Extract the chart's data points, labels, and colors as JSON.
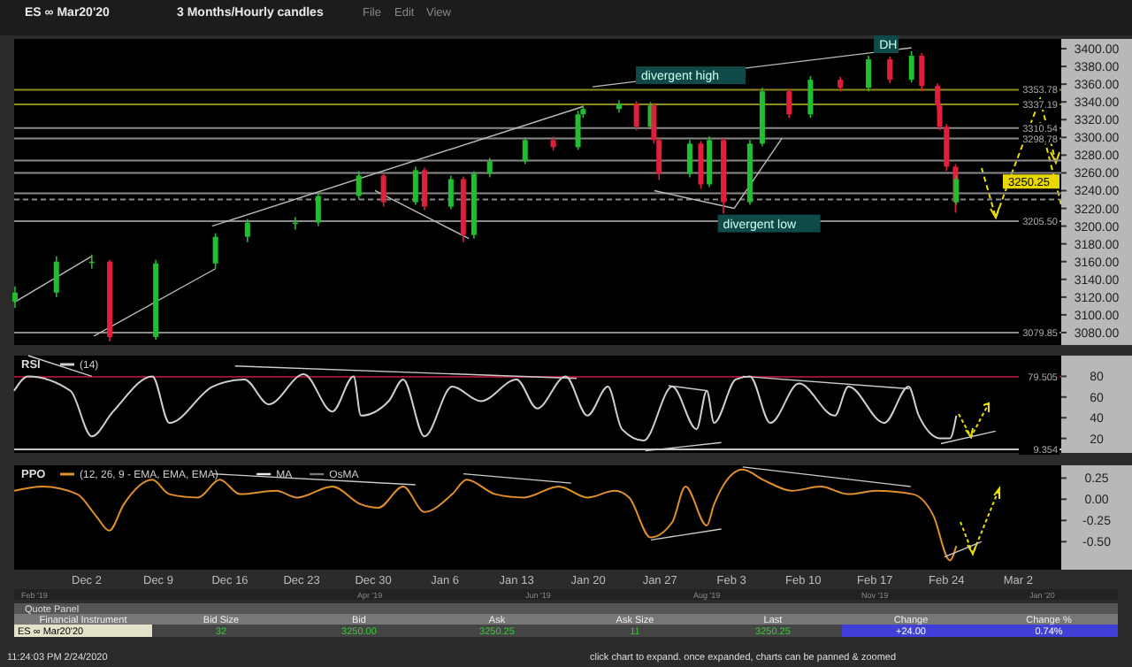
{
  "chart_data": [
    {
      "type": "candlestick",
      "title": "ES ∞ Mar20'20",
      "subtitle": "3 Months/Hourly candles",
      "tick_labels": "y",
      "grid": false,
      "legend": false,
      "series": [
        {
          "type": "line",
          "color": "#bbbbbb",
          "x": [
            "2019-12-02T17:00",
            "2019-12-14T14:00"
          ],
          "values": [
            3076,
            3152
          ]
        },
        {
          "type": "line",
          "color": "#bbbbbb",
          "x": [
            "2019-11-24T22:00",
            "2019-12-02T12:00"
          ],
          "values": [
            3114,
            3166
          ]
        },
        {
          "type": "line",
          "color": "#bbbbbb",
          "x": [
            "2019-12-14T06:00",
            "2020-01-19T13:00"
          ],
          "values": [
            3200,
            3335
          ]
        },
        {
          "type": "line",
          "color": "#bbbbbb",
          "x": [
            "2019-12-30T04:00",
            "2020-01-08T08:00"
          ],
          "values": [
            3240,
            3186
          ]
        },
        {
          "type": "line",
          "color": "#bbbbbb",
          "x": [
            "2020-01-26T11:00",
            "2020-02-03T06:00"
          ],
          "values": [
            3240,
            3220
          ]
        },
        {
          "type": "line",
          "color": "#bbbbbb",
          "x": [
            "2020-02-03T06:00",
            "2020-02-07T22:00"
          ],
          "values": [
            3220,
            3299
          ]
        },
        {
          "type": "line",
          "color": "#bbbbbb",
          "x": [
            "2020-01-20T10:00",
            "2020-02-20T14:00"
          ],
          "values": [
            3357,
            3401
          ]
        }
      ],
      "x": [
        "2019-11-25T00:00",
        "2019-11-29T01:00",
        "2019-12-02T12:00",
        "2019-12-04T06:00",
        "2019-12-08T18:00",
        "2019-12-14T14:00",
        "2019-12-17T17:00",
        "2019-12-22T09:00",
        "2019-12-24T15:00",
        "2019-12-28T14:00",
        "2019-12-31T00:00",
        "2020-01-03T03:00",
        "2020-01-04T00:00",
        "2020-01-06T14:00",
        "2020-01-07T19:00",
        "2020-01-08T20:00",
        "2020-01-10T09:00",
        "2020-01-13T20:00",
        "2020-01-16T14:00",
        "2020-01-19T00:00",
        "2020-01-19T12:00",
        "2020-01-23T00:00",
        "2020-01-24T17:00",
        "2020-01-26T02:00",
        "2020-01-26T10:00",
        "2020-01-26T22:00",
        "2020-01-29T22:00",
        "2020-01-31T00:00",
        "2020-01-31T20:00",
        "2020-02-02T05:00",
        "2020-02-04T19:00",
        "2020-02-06T00:00",
        "2020-02-08T15:00",
        "2020-02-10T17:00",
        "2020-02-13T15:00",
        "2020-02-16T09:00",
        "2020-02-18T11:00",
        "2020-02-20T14:00",
        "2020-02-21T14:00",
        "2020-02-23T03:00",
        "2020-02-23T08:00",
        "2020-02-24T00:00",
        "2020-02-24T21:00",
        "2020-02-24T23:00"
      ],
      "ohlc": [
        [
          3115,
          3132,
          3108,
          3125
        ],
        [
          3125,
          3166,
          3120,
          3160
        ],
        [
          3160,
          3168,
          3152,
          3160
        ],
        [
          3160,
          3162,
          3070,
          3075
        ],
        [
          3075,
          3162,
          3072,
          3158
        ],
        [
          3158,
          3192,
          3152,
          3188
        ],
        [
          3188,
          3208,
          3182,
          3204
        ],
        [
          3204,
          3210,
          3196,
          3204
        ],
        [
          3204,
          3238,
          3200,
          3234
        ],
        [
          3234,
          3262,
          3230,
          3257
        ],
        [
          3257,
          3260,
          3222,
          3227
        ],
        [
          3227,
          3267,
          3224,
          3263
        ],
        [
          3263,
          3266,
          3218,
          3222
        ],
        [
          3222,
          3257,
          3219,
          3253
        ],
        [
          3253,
          3256,
          3182,
          3190
        ],
        [
          3190,
          3262,
          3186,
          3259
        ],
        [
          3259,
          3277,
          3255,
          3273
        ],
        [
          3273,
          3300,
          3270,
          3297
        ],
        [
          3297,
          3301,
          3285,
          3289
        ],
        [
          3289,
          3330,
          3286,
          3326
        ],
        [
          3326,
          3336,
          3322,
          3332
        ],
        [
          3332,
          3342,
          3328,
          3338
        ],
        [
          3338,
          3341,
          3308,
          3312
        ],
        [
          3312,
          3340,
          3309,
          3336
        ],
        [
          3336,
          3339,
          3293,
          3297
        ],
        [
          3297,
          3300,
          3252,
          3259
        ],
        [
          3259,
          3297,
          3255,
          3293
        ],
        [
          3293,
          3296,
          3242,
          3247
        ],
        [
          3247,
          3301,
          3244,
          3297
        ],
        [
          3297,
          3300,
          3214,
          3227
        ],
        [
          3227,
          3297,
          3224,
          3293
        ],
        [
          3293,
          3356,
          3290,
          3352
        ],
        [
          3352,
          3355,
          3322,
          3326
        ],
        [
          3326,
          3369,
          3322,
          3365
        ],
        [
          3365,
          3368,
          3352,
          3356
        ],
        [
          3356,
          3392,
          3352,
          3388
        ],
        [
          3388,
          3391,
          3361,
          3365
        ],
        [
          3365,
          3397,
          3362,
          3392
        ],
        [
          3392,
          3395,
          3352,
          3358
        ],
        [
          3358,
          3361,
          3332,
          3336
        ],
        [
          3336,
          3340,
          3308,
          3312
        ],
        [
          3312,
          3315,
          3262,
          3267
        ],
        [
          3267,
          3270,
          3215,
          3227
        ],
        [
          3227,
          3257,
          3224,
          3253
        ]
      ],
      "colors": [
        "#1fbf2f",
        "#1fbf2f",
        "#1fbf2f",
        "#e0203a",
        "#1fbf2f",
        "#1fbf2f",
        "#1fbf2f",
        "#1fbf2f",
        "#1fbf2f",
        "#1fbf2f",
        "#e0203a",
        "#1fbf2f",
        "#e0203a",
        "#1fbf2f",
        "#e0203a",
        "#1fbf2f",
        "#1fbf2f",
        "#1fbf2f",
        "#e0203a",
        "#1fbf2f",
        "#1fbf2f",
        "#1fbf2f",
        "#e0203a",
        "#1fbf2f",
        "#e0203a",
        "#e0203a",
        "#1fbf2f",
        "#e0203a",
        "#1fbf2f",
        "#e0203a",
        "#1fbf2f",
        "#1fbf2f",
        "#e0203a",
        "#1fbf2f",
        "#e0203a",
        "#1fbf2f",
        "#e0203a",
        "#1fbf2f",
        "#e0203a",
        "#e0203a",
        "#e0203a",
        "#e0203a",
        "#e0203a",
        "#1fbf2f"
      ],
      "xlim": [
        "2019-11-24T22:00",
        "2020-03-06T05:00"
      ],
      "ylim": [
        3066,
        3411
      ],
      "yticks": [
        {
          "value": 3080,
          "label": "3080.00"
        },
        {
          "value": 3100,
          "label": "3100.00"
        },
        {
          "value": 3120,
          "label": "3120.00"
        },
        {
          "value": 3140,
          "label": "3140.00"
        },
        {
          "value": 3160,
          "label": "3160.00"
        },
        {
          "value": 3180,
          "label": "3180.00"
        },
        {
          "value": 3200,
          "label": "3200.00"
        },
        {
          "value": 3220,
          "label": "3220.00"
        },
        {
          "value": 3240,
          "label": "3240.00"
        },
        {
          "value": 3260,
          "label": "3260.00"
        },
        {
          "value": 3280,
          "label": "3280.00"
        },
        {
          "value": 3300,
          "label": "3300.00"
        },
        {
          "value": 3320,
          "label": "3320.00"
        },
        {
          "value": 3340,
          "label": "3340.00"
        },
        {
          "value": 3360,
          "label": "3360.00"
        },
        {
          "value": 3380,
          "label": "3380.00"
        },
        {
          "value": 3400,
          "label": "3400.00"
        }
      ],
      "ref_lines": [
        {
          "axis": "y",
          "value": 3353.78,
          "label": "3353.78",
          "color": "#8c8a1c"
        },
        {
          "axis": "y",
          "value": 3337.19,
          "label": "3337.19",
          "color": "#8c8a1c"
        },
        {
          "axis": "y",
          "value": 3310.54,
          "label": "3310.54",
          "color": "#8a8a8a"
        },
        {
          "axis": "y",
          "value": 3298.78,
          "label": "3298.78",
          "color": "#8a8a8a"
        },
        {
          "axis": "y",
          "value": 3274,
          "label": null,
          "color": "#8a8a8a"
        },
        {
          "axis": "y",
          "value": 3260,
          "label": null,
          "color": "#8a8a8a"
        },
        {
          "axis": "y",
          "value": 3237,
          "label": null,
          "color": "#8a8a8a"
        },
        {
          "axis": "y",
          "value": 3230,
          "label": null,
          "color": "#8a8a8a",
          "line_style": "dashed"
        },
        {
          "axis": "y",
          "value": 3205.5,
          "label": "3205.50",
          "color": "#8a8a8a"
        },
        {
          "axis": "y",
          "value": 3079.85,
          "label": "3079.85",
          "color": "#8a8a8a"
        }
      ],
      "annotations": [
        "File",
        "Edit",
        "View",
        {
          "text": "divergent high",
          "x": "2020-01-25T00:00",
          "y": 3370
        },
        {
          "text": "divergent low",
          "x": "2020-02-02T00:00",
          "y": 3203
        },
        {
          "text": "DH",
          "x": "2020-02-17T06:00",
          "y": 3405
        },
        {
          "text": "3250.25",
          "x": "2020-03-06T05:00",
          "y": 3250.25
        }
      ]
    },
    {
      "type": "line",
      "title": "RSI",
      "tick_labels": "y",
      "grid": false,
      "legend": "top left",
      "marker": "none",
      "line_style": "solid",
      "xlim": [
        "2019-11-24T22:00",
        "2020-03-06T05:00"
      ],
      "ylim": [
        6,
        100
      ],
      "yticks": [
        20,
        40,
        60,
        80
      ],
      "series": [
        {
          "name": "(14)",
          "color": "#d0d0d0",
          "x": [
            "2019-11-24T22:00",
            "2019-11-26T07:00",
            "2019-11-30T10:00",
            "2019-12-02T12:00",
            "2019-12-04T14:00",
            "2019-12-08T10:00",
            "2019-12-10T02:00",
            "2019-12-14T07:00",
            "2019-12-17T10:00",
            "2019-12-19T19:00",
            "2019-12-23T05:00",
            "2019-12-26T00:00",
            "2019-12-28T02:00",
            "2019-12-28T19:00",
            "2019-12-31T12:00",
            "2020-01-01T22:00",
            "2020-01-04T00:00",
            "2020-01-06T17:00",
            "2020-01-09T12:00",
            "2020-01-13T00:00",
            "2020-01-15T00:00",
            "2020-01-17T19:00",
            "2020-01-19T22:00",
            "2020-01-21T22:00",
            "2020-01-23T07:00",
            "2020-01-25T10:00",
            "2020-01-28T05:00",
            "2020-01-30T14:00",
            "2020-01-31T14:00",
            "2020-02-01T07:00",
            "2020-02-03T10:00",
            "2020-02-04T19:00",
            "2020-02-06T19:00",
            "2020-02-09T14:00",
            "2020-02-13T02:00",
            "2020-02-14T10:00",
            "2020-02-17T22:00",
            "2020-02-20T07:00",
            "2020-02-21T07:00",
            "2020-02-23T10:00",
            "2020-02-24T08:00",
            "2020-02-24T23:00"
          ],
          "values": [
            66,
            80,
            66,
            22,
            46,
            80,
            35,
            70,
            77,
            53,
            82,
            46,
            80,
            42,
            56,
            77,
            22,
            70,
            56,
            77,
            49,
            80,
            42,
            70,
            29,
            18,
            70,
            29,
            66,
            35,
            77,
            80,
            35,
            73,
            42,
            70,
            35,
            70,
            42,
            20,
            20,
            42
          ]
        },
        {
          "type": "line",
          "color": "#cccccc",
          "x": [
            "2019-11-26T07:00",
            "2019-12-02T12:00"
          ],
          "values": [
            100,
            80
          ]
        },
        {
          "type": "line",
          "color": "#cccccc",
          "x": [
            "2019-12-16T12:00",
            "2020-01-18T21:00"
          ],
          "values": [
            90,
            78
          ]
        },
        {
          "type": "line",
          "color": "#cccccc",
          "x": [
            "2020-01-25T14:00",
            "2020-02-02T00:00"
          ],
          "values": [
            8,
            16
          ]
        },
        {
          "type": "line",
          "color": "#cccccc",
          "x": [
            "2020-01-27T20:00",
            "2020-01-31T16:00"
          ],
          "values": [
            71,
            66
          ]
        },
        {
          "type": "line",
          "color": "#cccccc",
          "x": [
            "2020-02-04T02:00",
            "2020-02-20T08:00"
          ],
          "values": [
            80,
            68
          ]
        },
        {
          "type": "line",
          "color": "#cccccc",
          "x": [
            "2020-02-23T11:00",
            "2020-02-28T19:00"
          ],
          "values": [
            15,
            27
          ]
        }
      ],
      "ref_lines": [
        {
          "axis": "y",
          "value": 79.505,
          "label": "79.505",
          "color": "#9a1030"
        },
        {
          "axis": "y",
          "value": 9.354,
          "label": "9.354",
          "color": "#c8c8c8"
        }
      ]
    },
    {
      "type": "line",
      "title": "PPO",
      "grid": false,
      "legend": "top left",
      "marker": "none",
      "line_style": "solid",
      "xlim": [
        "2019-11-24T22:00",
        "2020-03-06T05:00"
      ],
      "xticks": [
        {
          "value": "2019-12-02",
          "label": "Dec 2"
        },
        {
          "value": "2019-12-09",
          "label": "Dec 9"
        },
        {
          "value": "2019-12-16",
          "label": "Dec 16"
        },
        {
          "value": "2019-12-23",
          "label": "Dec 23"
        },
        {
          "value": "2019-12-30",
          "label": "Dec 30"
        },
        {
          "value": "2020-01-06",
          "label": "Jan 6"
        },
        {
          "value": "2020-01-13",
          "label": "Jan 13"
        },
        {
          "value": "2020-01-20",
          "label": "Jan 20"
        },
        {
          "value": "2020-01-27",
          "label": "Jan 27"
        },
        {
          "value": "2020-02-03",
          "label": "Feb 3"
        },
        {
          "value": "2020-02-10",
          "label": "Feb 10"
        },
        {
          "value": "2020-02-17",
          "label": "Feb 17"
        },
        {
          "value": "2020-02-24",
          "label": "Feb 24"
        },
        {
          "value": "2020-03-02",
          "label": "Mar 2"
        }
      ],
      "ylim": [
        -0.83,
        0.4
      ],
      "yticks": [
        {
          "value": 0.25,
          "label": "0.25"
        },
        {
          "value": 0,
          "label": "0.00"
        },
        {
          "value": -0.25,
          "label": "-0.25"
        },
        {
          "value": -0.5,
          "label": "-0.50"
        }
      ],
      "series": [
        {
          "name": "(12, 26, 9 - EMA, EMA, EMA)",
          "color": "#e0902a",
          "x": [
            "2019-11-24T22:00",
            "2019-11-27T17:00",
            "2019-12-01T02:00",
            "2019-12-02T21:00",
            "2019-12-04T05:00",
            "2019-12-05T15:00",
            "2019-12-08T10:00",
            "2019-12-10T02:00",
            "2019-12-12T21:00",
            "2019-12-15T00:00",
            "2019-12-17T00:00",
            "2019-12-20T12:00",
            "2019-12-22T14:00",
            "2019-12-26T00:00",
            "2019-12-28T19:00",
            "2019-12-30T12:00",
            "2020-01-01T22:00",
            "2020-01-04T00:00",
            "2020-01-06T17:00",
            "2020-01-08T03:00",
            "2020-01-10T22:00",
            "2020-01-13T17:00",
            "2020-01-17T03:00",
            "2020-01-19T22:00",
            "2020-01-22T14:00",
            "2020-01-24T00:00",
            "2020-01-26T02:00",
            "2020-01-28T05:00",
            "2020-01-29T12:00",
            "2020-01-31T14:00",
            "2020-02-01T07:00",
            "2020-02-04T02:00",
            "2020-02-06T02:00",
            "2020-02-08T22:00",
            "2020-02-11T17:00",
            "2020-02-14T10:00",
            "2020-02-17T05:00",
            "2020-02-20T17:00",
            "2020-02-22T17:00",
            "2020-02-24T08:00",
            "2020-02-24T23:00"
          ],
          "values": [
            0.1,
            0.15,
            0.06,
            -0.19,
            -0.37,
            -0.06,
            0.23,
            0.06,
            0.02,
            0.23,
            0.06,
            0.1,
            0.02,
            0.15,
            -0.06,
            -0.1,
            0.15,
            -0.15,
            0.06,
            0.23,
            0.06,
            0.02,
            0.15,
            0.02,
            0.1,
            0.02,
            -0.45,
            -0.27,
            0.15,
            -0.31,
            -0.06,
            0.35,
            0.23,
            0.1,
            0.15,
            0.06,
            0.1,
            0.06,
            -0.19,
            -0.72,
            -0.55
          ]
        },
        {
          "type": "line",
          "color": "#cccccc",
          "x": [
            "2019-12-14T06:00",
            "2020-01-03T03:00"
          ],
          "values": [
            0.3,
            0.17
          ]
        },
        {
          "type": "line",
          "color": "#cccccc",
          "x": [
            "2020-01-07T19:00",
            "2020-01-18T08:00"
          ],
          "values": [
            0.3,
            0.19
          ]
        },
        {
          "type": "line",
          "color": "#cccccc",
          "x": [
            "2020-01-26T03:00",
            "2020-02-02T00:00"
          ],
          "values": [
            -0.48,
            -0.35
          ]
        },
        {
          "type": "line",
          "color": "#cccccc",
          "x": [
            "2020-02-04T02:00",
            "2020-02-20T12:00"
          ],
          "values": [
            0.38,
            0.15
          ]
        },
        {
          "type": "line",
          "color": "#cccccc",
          "x": [
            "2020-02-23T19:00",
            "2020-02-27T10:00"
          ],
          "values": [
            -0.68,
            -0.5
          ]
        }
      ],
      "annotations": [
        "MA",
        "OsMA",
        "Feb '19",
        "Apr '19",
        "Jun '19",
        "Aug '19",
        "Nov '19",
        "Jan '20"
      ]
    },
    {
      "type": "other",
      "title": "Quote Panel",
      "categories": [
        "Financial Instrument",
        "Bid Size",
        "Bid",
        "Ask",
        "Ask Size",
        "Last",
        "Change",
        "Change %"
      ],
      "value_labels": [
        "ES ∞ Mar20'20",
        "32",
        "3250.00",
        "3250.25",
        "11",
        "3250.25",
        "+24.00",
        "0.74%"
      ],
      "annotations": [
        "11:24:03 PM 2/24/2020",
        "click chart to expand. once expanded, charts can be panned & zoomed"
      ]
    }
  ]
}
